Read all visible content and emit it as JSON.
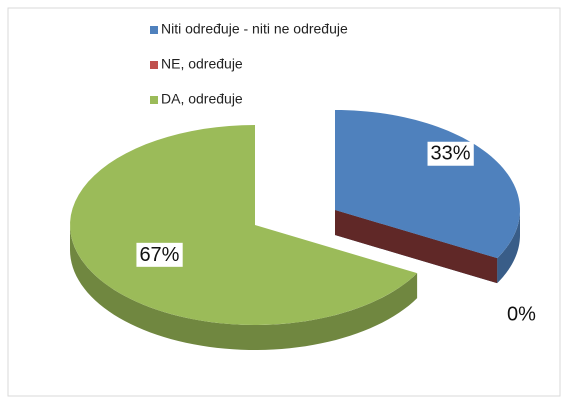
{
  "chart_data": {
    "type": "pie",
    "categories": [
      "Niti određuje - niti ne određuje",
      "NE, određuje",
      "DA, određuje"
    ],
    "values": [
      33,
      0,
      67
    ],
    "value_labels": [
      "33%",
      "0%",
      "67%"
    ],
    "colors": [
      "#4f81bd",
      "#c0504d",
      "#9bbb59"
    ],
    "legend": "top"
  }
}
